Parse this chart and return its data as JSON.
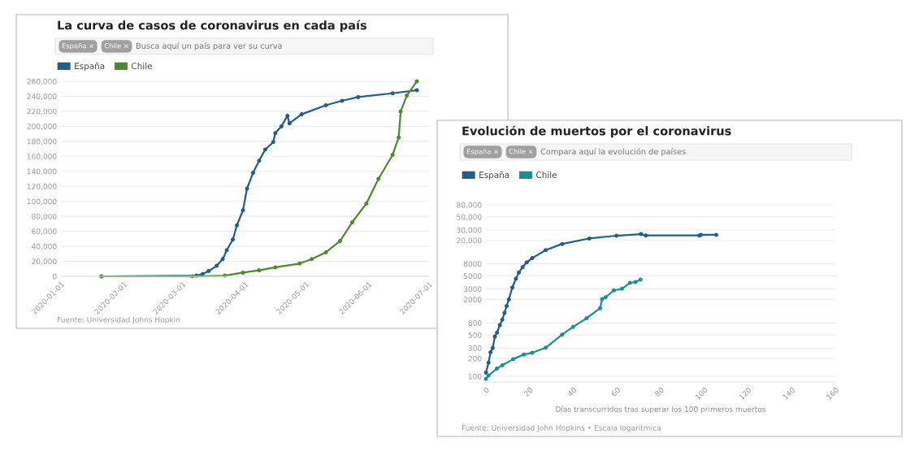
{
  "chart_data": [
    {
      "type": "line",
      "title": "La curva de casos de coronavirus en cada país",
      "subtitle": "Busca aquí un país para ver su curva",
      "annotations": [
        "España ×",
        "Chile ×",
        "Fuente: Universidad Johns Hopkin"
      ],
      "xlim": [
        "2020-01-01",
        "2020-07-01"
      ],
      "xticks": [
        "2020-01-01",
        "2020-02-01",
        "2020-03-01",
        "2020-04-01",
        "2020-05-01",
        "2020-06-01",
        "2020-07-01"
      ],
      "ylim": [
        0,
        260000
      ],
      "yticks": [
        {
          "value": 0,
          "label": "0"
        },
        {
          "value": 20000,
          "label": "20,000"
        },
        {
          "value": 40000,
          "label": "40,000"
        },
        {
          "value": 60000,
          "label": "60,000"
        },
        {
          "value": 80000,
          "label": "80,000"
        },
        {
          "value": 100000,
          "label": "100,000"
        },
        {
          "value": 120000,
          "label": "120,000"
        },
        {
          "value": 140000,
          "label": "140,000"
        },
        {
          "value": 160000,
          "label": "160,000"
        },
        {
          "value": 180000,
          "label": "180,000"
        },
        {
          "value": 200000,
          "label": "200,000"
        },
        {
          "value": 220000,
          "label": "220,000"
        },
        {
          "value": 240000,
          "label": "240,000"
        },
        {
          "value": 260000,
          "label": "260,000"
        }
      ],
      "grid": "y",
      "legend": "top left",
      "marker": "circle",
      "line_style": "solid",
      "series": [
        {
          "name": "España",
          "color": "#1f5f8b",
          "x": [
            "2020-01-21",
            "2020-03-08",
            "2020-03-11",
            "2020-03-14",
            "2020-03-18",
            "2020-03-21",
            "2020-03-23",
            "2020-03-26",
            "2020-03-28",
            "2020-03-31",
            "2020-04-02",
            "2020-04-05",
            "2020-04-08",
            "2020-04-11",
            "2020-04-15",
            "2020-04-16",
            "2020-04-19",
            "2020-04-22",
            "2020-04-23",
            "2020-04-29",
            "2020-05-11",
            "2020-05-19",
            "2020-05-27",
            "2020-06-13",
            "2020-06-25"
          ],
          "values": [
            0,
            1000,
            3000,
            7000,
            14000,
            23000,
            35000,
            49000,
            68000,
            88000,
            117000,
            138000,
            154000,
            169000,
            179000,
            191000,
            200000,
            214000,
            204000,
            216000,
            228000,
            234000,
            239000,
            244000,
            248000
          ]
        },
        {
          "name": "Chile",
          "color": "#4f8a2e",
          "x": [
            "2020-01-21",
            "2020-03-06",
            "2020-03-22",
            "2020-03-31",
            "2020-04-08",
            "2020-04-16",
            "2020-04-28",
            "2020-05-04",
            "2020-05-11",
            "2020-05-18",
            "2020-05-24",
            "2020-05-31",
            "2020-06-06",
            "2020-06-13",
            "2020-06-16",
            "2020-06-17",
            "2020-06-20",
            "2020-06-25"
          ],
          "values": [
            0,
            0,
            1000,
            5000,
            8000,
            12000,
            17000,
            23000,
            32000,
            47000,
            72000,
            97000,
            130000,
            162000,
            185000,
            220000,
            241000,
            260000
          ]
        }
      ]
    },
    {
      "type": "line",
      "title": "Evolución de muertos por el coronavirus",
      "subtitle": "Compara aquí la evolución de países",
      "xlabel": "Días transcurridos tras superar los 100 primeros muertos",
      "annotations": [
        "España ×",
        "Chile ×",
        "Fuente: Universidad John Hopkins • Escala logarítmica"
      ],
      "log": "y",
      "xlim": [
        0,
        160
      ],
      "xticks": [
        0,
        20,
        40,
        60,
        80,
        100,
        120,
        140,
        160
      ],
      "ylim": [
        80,
        80000
      ],
      "yticks": [
        100,
        200,
        300,
        500,
        800,
        2000,
        3000,
        5000,
        8000,
        {
          "value": 20000,
          "label": "20,000"
        },
        {
          "value": 30000,
          "label": "30,000"
        },
        {
          "value": 50000,
          "label": "50,000"
        },
        {
          "value": 80000,
          "label": "80,000"
        }
      ],
      "grid": "y",
      "legend": "top left",
      "marker": "circle",
      "line_style": "solid",
      "series": [
        {
          "name": "España",
          "color": "#1f5f8b",
          "x": [
            0,
            1.2,
            2.1,
            3.1,
            4.1,
            5.1,
            6.4,
            7.5,
            8.5,
            9.5,
            10.5,
            12.1,
            13.7,
            15.1,
            16.8,
            18.7,
            21.2,
            27.4,
            34.9,
            47.3,
            59.8,
            71,
            73.2,
            97.7,
            98.5,
            105.5
          ],
          "values": [
            115,
            170,
            255,
            300,
            470,
            550,
            735,
            910,
            1180,
            1550,
            2000,
            3180,
            4470,
            5700,
            7050,
            8500,
            10000,
            13700,
            17400,
            21500,
            24000,
            25500,
            24200,
            24200,
            24800,
            24800
          ]
        },
        {
          "name": "Chile",
          "color": "#1a9090",
          "x": [
            0,
            1.2,
            5,
            7.5,
            12.5,
            17.4,
            21.2,
            27.4,
            34.9,
            39.9,
            46.1,
            52.3,
            53.2,
            54.8,
            58.6,
            62.3,
            66,
            68.5,
            70.8
          ],
          "values": [
            90,
            103,
            135,
            153,
            195,
            234,
            250,
            305,
            508,
            685,
            960,
            1420,
            2020,
            2175,
            2850,
            3030,
            3820,
            3940,
            4340
          ]
        }
      ]
    }
  ]
}
